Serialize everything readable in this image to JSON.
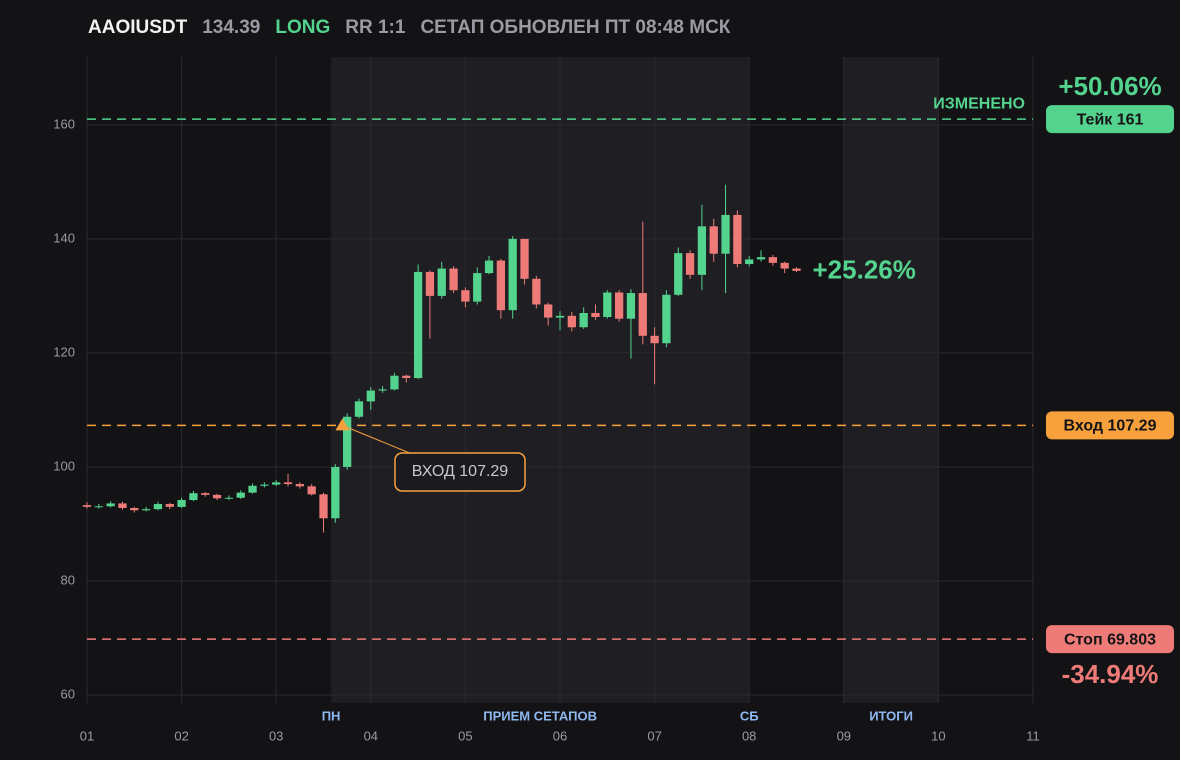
{
  "header": {
    "symbol": "AAOIUSDT",
    "price": "134.39",
    "side": "LONG",
    "rr": "RR 1:1",
    "status": "СЕТАП ОБНОВЛЕН ПТ 08:48 МСК"
  },
  "chart_data": {
    "type": "candlestick",
    "x": [
      1,
      1.125,
      1.25,
      1.375,
      1.5,
      1.625,
      1.75,
      1.875,
      2,
      2.125,
      2.25,
      2.375,
      2.5,
      2.625,
      2.75,
      2.875,
      3,
      3.125,
      3.25,
      3.375,
      3.5,
      3.625,
      3.75,
      3.875,
      4,
      4.125,
      4.25,
      4.375,
      4.5,
      4.625,
      4.75,
      4.875,
      5,
      5.125,
      5.25,
      5.375,
      5.5,
      5.625,
      5.75,
      5.875,
      6,
      6.125,
      6.25,
      6.375,
      6.5,
      6.625,
      6.75,
      6.875,
      7,
      7.125,
      7.25,
      7.375,
      7.5,
      7.625,
      7.75,
      7.875,
      8,
      8.125,
      8.25,
      8.375,
      8.5
    ],
    "open": [
      93.3,
      93.0,
      93.1,
      93.6,
      92.8,
      92.4,
      92.6,
      93.5,
      93.0,
      94.2,
      95.4,
      95.1,
      94.5,
      94.6,
      95.5,
      96.7,
      96.9,
      97.3,
      97.0,
      96.6,
      95.2,
      91.0,
      100.0,
      108.8,
      111.5,
      113.4,
      113.6,
      116.0,
      115.6,
      134.2,
      130.0,
      134.8,
      131.0,
      129.0,
      134.0,
      136.2,
      127.5,
      140.0,
      133.0,
      128.5,
      126.2,
      126.5,
      124.5,
      127.0,
      126.3,
      130.6,
      126.0,
      130.5,
      123.0,
      121.7,
      130.2,
      137.5,
      133.7,
      142.2,
      137.4,
      144.2,
      135.6,
      136.4,
      136.8,
      135.8,
      134.8
    ],
    "high": [
      93.8,
      93.5,
      94.0,
      93.9,
      93.0,
      93.0,
      93.9,
      93.7,
      94.6,
      95.8,
      95.6,
      95.3,
      95.0,
      95.9,
      97.1,
      97.3,
      97.7,
      98.8,
      97.3,
      97.0,
      95.5,
      100.5,
      109.4,
      112.0,
      114.0,
      114.2,
      116.5,
      116.2,
      135.5,
      134.5,
      136.0,
      135.2,
      131.5,
      135.0,
      137.0,
      136.5,
      140.5,
      139.5,
      133.5,
      128.8,
      127.3,
      127.2,
      128.0,
      128.5,
      131.0,
      131.0,
      131.2,
      143.0,
      124.5,
      131.0,
      138.5,
      138.0,
      146.0,
      143.5,
      149.5,
      145.0,
      137.0,
      138.0,
      137.2,
      136.0,
      135.0
    ],
    "low": [
      92.7,
      92.7,
      92.9,
      92.5,
      92.0,
      92.2,
      92.4,
      92.6,
      92.8,
      94.0,
      94.8,
      94.2,
      94.2,
      94.4,
      95.3,
      96.4,
      96.7,
      96.6,
      96.2,
      95.0,
      88.5,
      90.2,
      99.5,
      108.5,
      110.0,
      113.0,
      113.4,
      114.8,
      115.4,
      122.5,
      129.5,
      130.5,
      128.0,
      128.5,
      133.8,
      126.0,
      126.0,
      132.0,
      127.8,
      124.8,
      124.0,
      123.8,
      124.2,
      125.8,
      126.0,
      125.5,
      119.0,
      121.5,
      114.5,
      121.0,
      130.0,
      133.0,
      131.0,
      136.0,
      130.5,
      135.0,
      135.2,
      136.0,
      135.3,
      134.0,
      134.2
    ],
    "close": [
      93.0,
      93.1,
      93.6,
      92.8,
      92.4,
      92.6,
      93.5,
      93.0,
      94.2,
      95.4,
      95.1,
      94.5,
      94.6,
      95.5,
      96.7,
      96.9,
      97.3,
      97.0,
      96.6,
      95.2,
      91.0,
      100.0,
      108.8,
      111.5,
      113.4,
      113.6,
      116.0,
      115.6,
      134.2,
      130.0,
      134.8,
      131.0,
      129.0,
      134.0,
      136.2,
      127.5,
      140.0,
      133.0,
      128.5,
      126.2,
      126.5,
      124.5,
      127.0,
      126.3,
      130.6,
      126.0,
      130.5,
      123.0,
      121.7,
      130.2,
      137.5,
      133.7,
      142.2,
      137.4,
      144.2,
      135.6,
      136.4,
      136.8,
      135.8,
      134.8,
      134.39
    ],
    "up_color": "#53d38e",
    "down_color": "#ef7b79",
    "ylim": [
      58.6,
      171.9
    ],
    "yticks": [
      60,
      80,
      100,
      120,
      140,
      160
    ],
    "xlim": [
      1,
      11
    ],
    "xticks": [
      {
        "value": 1,
        "label": "01"
      },
      {
        "value": 2,
        "label": "02"
      },
      {
        "value": 3,
        "label": "03"
      },
      {
        "value": 4,
        "label": "04"
      },
      {
        "value": 5,
        "label": "05"
      },
      {
        "value": 6,
        "label": "06"
      },
      {
        "value": 7,
        "label": "07"
      },
      {
        "value": 8,
        "label": "08"
      },
      {
        "value": 9,
        "label": "09"
      },
      {
        "value": 10,
        "label": "10"
      },
      {
        "value": 11,
        "label": "11"
      }
    ],
    "grid": true,
    "zones": [
      {
        "start": 3.58,
        "end": 8,
        "label": "ПРИЕМ СЕТАПОВ",
        "start_label": "ПН",
        "end_label": "СБ"
      },
      {
        "start": 9,
        "end": 10,
        "label": "ИТОГИ"
      }
    ],
    "levels": [
      {
        "label": "Тейк 161",
        "value": 161,
        "color": "#53d38e",
        "change": "+50.06%",
        "note": "ИЗМЕНЕНО"
      },
      {
        "label": "Вход 107.29",
        "value": 107.29,
        "color": "#f7a13d"
      },
      {
        "label": "Стоп 69.803",
        "value": 69.803,
        "color": "#ef7b79",
        "change": "-34.94%"
      }
    ],
    "entry_marker": {
      "x": 3.7,
      "y": 107.29,
      "label": "ВХОД 107.29"
    },
    "last_change": "+25.26%"
  }
}
